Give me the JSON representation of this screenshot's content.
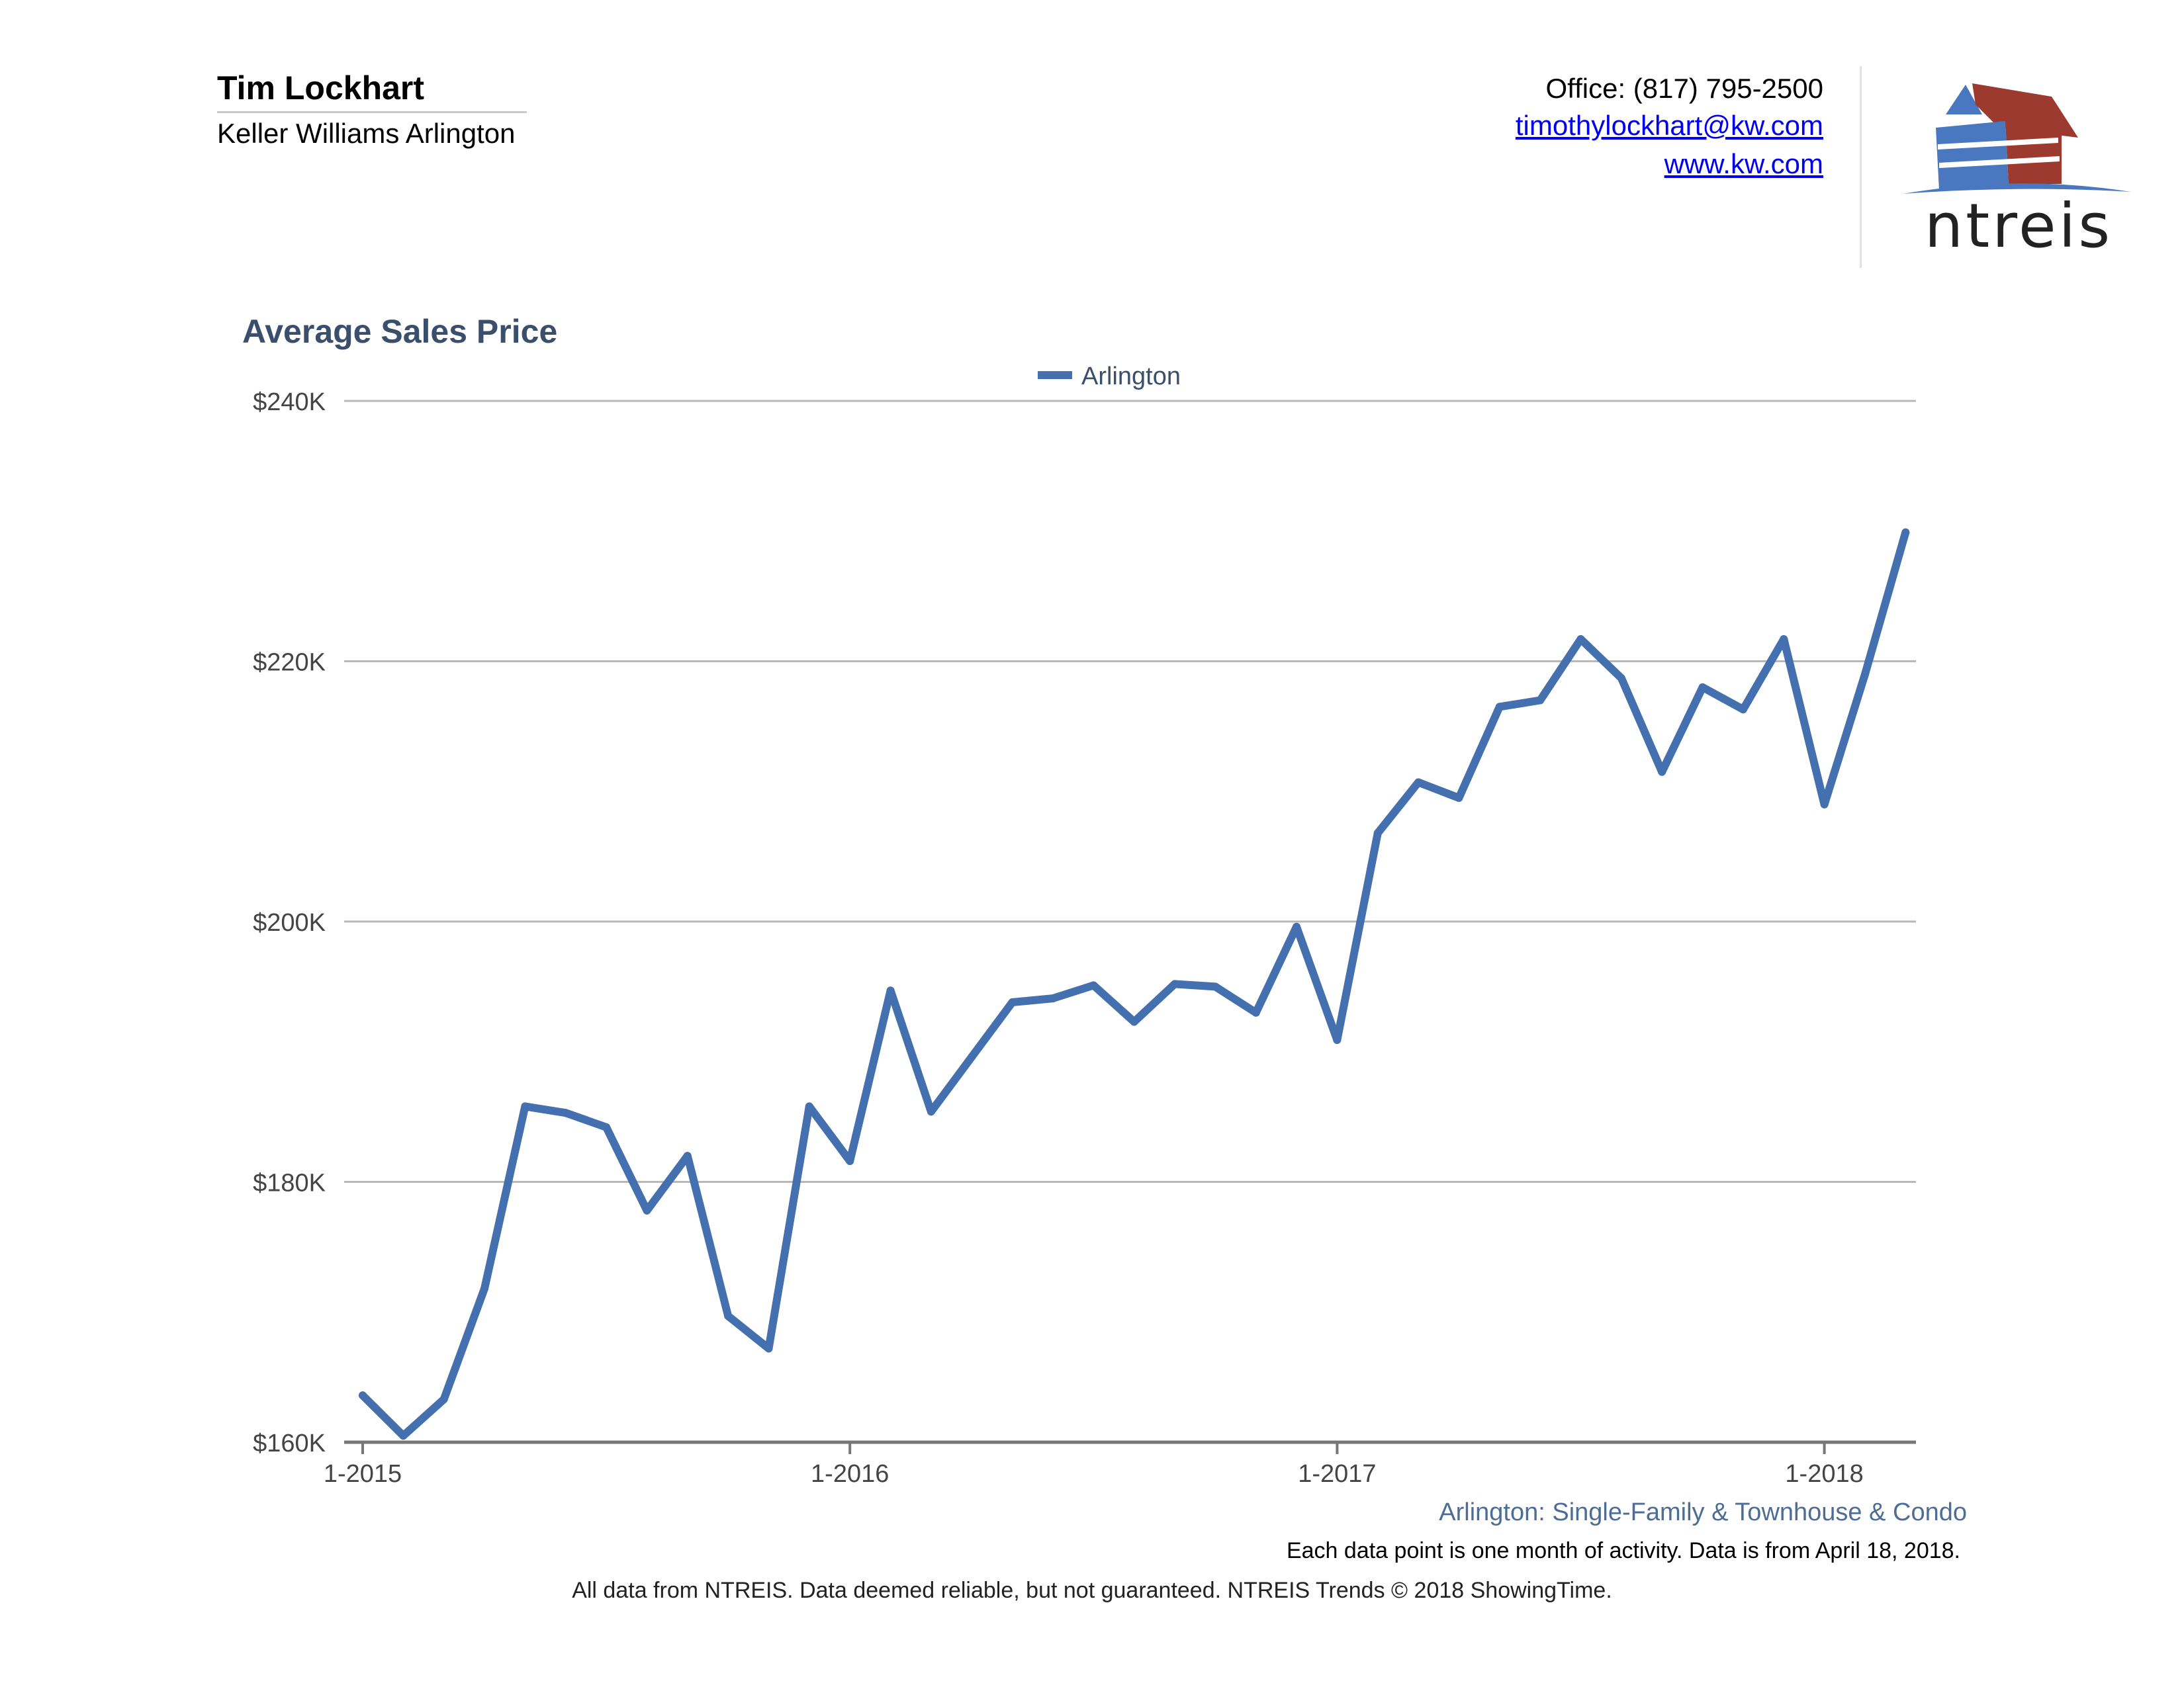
{
  "agent": {
    "name": "Tim Lockhart",
    "company": "Keller Williams Arlington"
  },
  "contact": {
    "office": "Office: (817) 795-2500",
    "email": "timothylockhart@kw.com",
    "website": "www.kw.com"
  },
  "logo": {
    "text": "ntreis"
  },
  "colors": {
    "series": "#4470b0",
    "logo_blue": "#4a78c0",
    "logo_red": "#9c3a30",
    "title": "#3a4f6b",
    "subtitle": "#4e6d96"
  },
  "chart_data": {
    "type": "line",
    "title": "Average Sales Price",
    "legend_position": "top-center",
    "grid": true,
    "xlabel": "",
    "ylabel": "",
    "x_start": "1-2015",
    "x_tick_labels": [
      "1-2015",
      "1-2016",
      "1-2017",
      "1-2018"
    ],
    "x_tick_indices": [
      0,
      12,
      24,
      36
    ],
    "y_ticks": [
      160000,
      180000,
      200000,
      220000,
      240000
    ],
    "y_tick_labels": [
      "$160K",
      "$180K",
      "$200K",
      "$220K",
      "$240K"
    ],
    "ylim": [
      160000,
      240000
    ],
    "series": [
      {
        "name": "Arlington",
        "values": [
          163600,
          160500,
          163300,
          171800,
          185800,
          185300,
          184200,
          177800,
          182000,
          169700,
          167200,
          185800,
          181600,
          194700,
          185400,
          189600,
          193800,
          194100,
          195100,
          192300,
          195200,
          195000,
          193000,
          199600,
          190900,
          206800,
          210700,
          209500,
          216500,
          217000,
          221700,
          218700,
          211500,
          218000,
          216300,
          221700,
          209000,
          219000,
          229900
        ]
      }
    ]
  },
  "chart_subtitle": "Arlington: Single-Family & Townhouse & Condo",
  "note": "Each data point is one month of activity. Data is from April 18, 2018.",
  "footer": "All data from NTREIS. Data deemed reliable, but not guaranteed. NTREIS Trends © 2018 ShowingTime."
}
